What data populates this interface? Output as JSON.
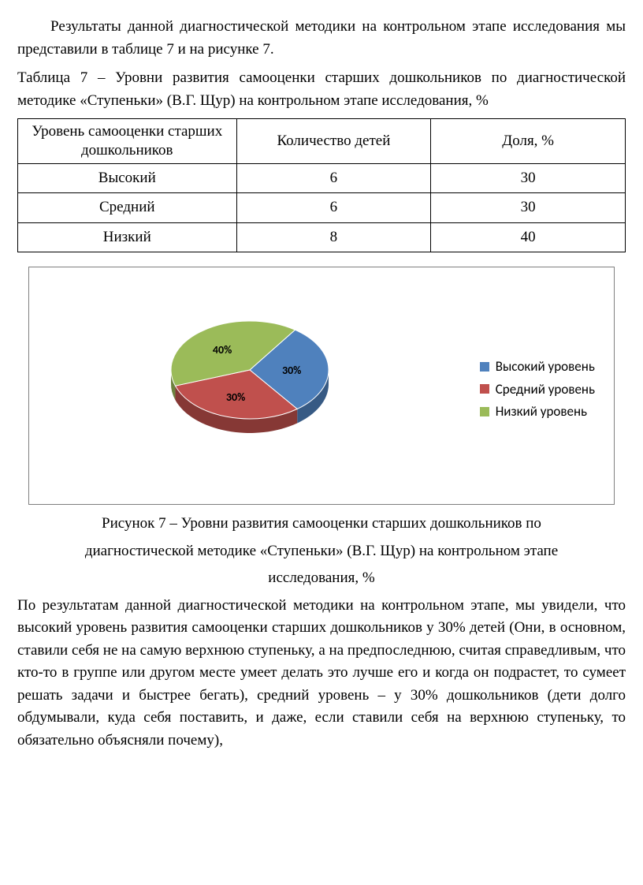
{
  "intro_paragraph": "Результаты данной диагностической методики на контрольном этапе исследования мы представили в таблице 7 и на рисунке 7.",
  "table_caption": "Таблица 7  –  Уровни развития самооценки старших дошкольников по диагностической методике «Ступеньки» (В.Г. Щур) на контрольном этапе исследования, %",
  "table": {
    "headers": [
      "Уровень  самооценки старших дошкольников",
      "Количество детей",
      "Доля, %"
    ],
    "rows": [
      [
        "Высокий",
        "6",
        "30"
      ],
      [
        "Средний",
        "6",
        "30"
      ],
      [
        "Низкий",
        "8",
        "40"
      ]
    ],
    "col_widths_pct": [
      36,
      32,
      32
    ]
  },
  "pie_chart": {
    "type": "pie",
    "series": [
      {
        "label": "Высокий уровень",
        "value": 30,
        "color": "#4f81bd",
        "pct_text": "30%"
      },
      {
        "label": "Средний уровень",
        "value": 30,
        "color": "#c0504d",
        "pct_text": "30%"
      },
      {
        "label": "Низкий уровень",
        "value": 40,
        "color": "#9bbb59",
        "pct_text": "40%"
      }
    ],
    "background_color": "#ffffff",
    "border_color": "#7f7f7f",
    "label_font": "Calibri",
    "label_fontsize": 17,
    "pct_fontsize": 14,
    "pct_fontweight": "bold",
    "pie_radius": 100,
    "tilt_ratio": 0.62,
    "depth": 18,
    "start_angle_deg": -55
  },
  "figure_caption_lines": [
    "Рисунок 7 –  Уровни развития самооценки старших дошкольников по",
    "диагностической методике «Ступеньки» (В.Г. Щур) на контрольном этапе",
    "исследования, %"
  ],
  "body_paragraph": "По результатам данной диагностической методики на контрольном этапе, мы увидели, что высокий уровень развития самооценки старших дошкольников у 30% детей (Они, в основном, ставили себя не на самую верхнюю ступеньку, а на предпоследнюю, считая справедливым, что кто-то в группе или другом месте умеет делать это лучше его и когда он подрастет, то сумеет решать задачи и быстрее бегать), средний уровень – у 30% дошкольников (дети долго обдумывали, куда себя поставить, и даже, если ставили себя на верхнюю ступеньку, то обязательно объясняли почему),"
}
